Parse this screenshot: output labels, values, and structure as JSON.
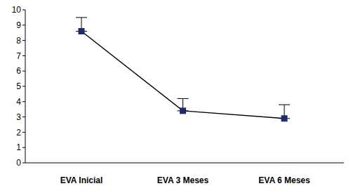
{
  "chart_data": {
    "type": "line",
    "categories": [
      "EVA Inicial",
      "EVA 3 Meses",
      "EVA 6 Meses"
    ],
    "values": [
      8.6,
      3.4,
      2.9
    ],
    "errors": [
      0.9,
      0.8,
      0.9
    ],
    "color": "#1f2a6e",
    "marker": "square",
    "ylim": [
      0,
      10
    ],
    "yticks": [
      0,
      1,
      2,
      3,
      4,
      5,
      6,
      7,
      8,
      9,
      10
    ],
    "grid": false
  }
}
